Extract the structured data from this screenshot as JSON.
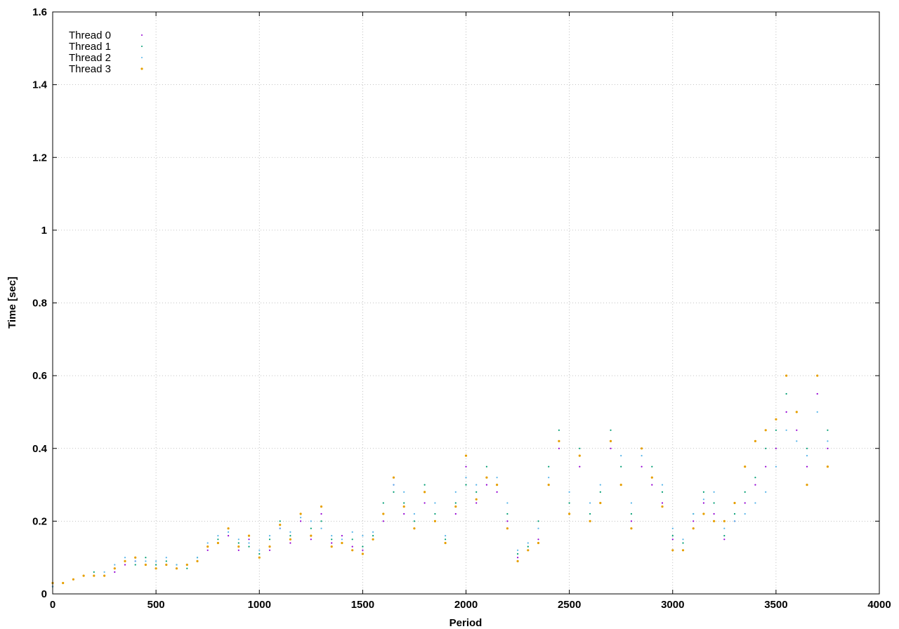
{
  "chart_data": {
    "type": "scatter",
    "title": "",
    "xlabel": "Period",
    "ylabel": "Time [sec]",
    "xlim": [
      0,
      4000
    ],
    "ylim": [
      0,
      1.6
    ],
    "x_ticks": [
      0,
      500,
      1000,
      1500,
      2000,
      2500,
      3000,
      3500,
      4000
    ],
    "y_ticks": [
      0,
      0.2,
      0.4,
      0.6,
      0.8,
      1,
      1.2,
      1.4,
      1.6
    ],
    "x_tick_labels": [
      "0",
      "500",
      "1000",
      "1500",
      "2000",
      "2500",
      "3000",
      "3500",
      "4000"
    ],
    "y_tick_labels": [
      "0",
      "0.2",
      "0.4",
      "0.6",
      "0.8",
      "1",
      "1.2",
      "1.4",
      "1.6"
    ],
    "grid": true,
    "legend_position": "top-left",
    "series": [
      {
        "name": "Thread 0",
        "color": "#9400d3",
        "marker": "dot",
        "points": [
          [
            0,
            0.02
          ],
          [
            50,
            0.03
          ],
          [
            100,
            0.04
          ],
          [
            150,
            0.05
          ],
          [
            200,
            0.05
          ],
          [
            250,
            0.05
          ],
          [
            300,
            0.06
          ],
          [
            350,
            0.08
          ],
          [
            400,
            0.09
          ],
          [
            450,
            0.08
          ],
          [
            500,
            0.07
          ],
          [
            550,
            0.08
          ],
          [
            600,
            0.07
          ],
          [
            650,
            0.08
          ],
          [
            700,
            0.09
          ],
          [
            750,
            0.12
          ],
          [
            800,
            0.14
          ],
          [
            850,
            0.16
          ],
          [
            900,
            0.12
          ],
          [
            950,
            0.15
          ],
          [
            1000,
            0.1
          ],
          [
            1050,
            0.12
          ],
          [
            1100,
            0.18
          ],
          [
            1150,
            0.14
          ],
          [
            1200,
            0.2
          ],
          [
            1250,
            0.15
          ],
          [
            1300,
            0.22
          ],
          [
            1350,
            0.14
          ],
          [
            1400,
            0.16
          ],
          [
            1450,
            0.13
          ],
          [
            1500,
            0.12
          ],
          [
            1550,
            0.15
          ],
          [
            1600,
            0.2
          ],
          [
            1650,
            0.3
          ],
          [
            1700,
            0.22
          ],
          [
            1750,
            0.18
          ],
          [
            1800,
            0.25
          ],
          [
            1850,
            0.2
          ],
          [
            1900,
            0.14
          ],
          [
            1950,
            0.22
          ],
          [
            2000,
            0.35
          ],
          [
            2050,
            0.25
          ],
          [
            2100,
            0.3
          ],
          [
            2150,
            0.28
          ],
          [
            2200,
            0.2
          ],
          [
            2250,
            0.1
          ],
          [
            2300,
            0.12
          ],
          [
            2350,
            0.15
          ],
          [
            2400,
            0.3
          ],
          [
            2450,
            0.4
          ],
          [
            2500,
            0.22
          ],
          [
            2550,
            0.35
          ],
          [
            2600,
            0.2
          ],
          [
            2650,
            0.25
          ],
          [
            2700,
            0.4
          ],
          [
            2750,
            0.3
          ],
          [
            2800,
            0.2
          ],
          [
            2850,
            0.35
          ],
          [
            2900,
            0.3
          ],
          [
            2950,
            0.25
          ],
          [
            3000,
            0.15
          ],
          [
            3050,
            0.12
          ],
          [
            3100,
            0.2
          ],
          [
            3150,
            0.25
          ],
          [
            3200,
            0.22
          ],
          [
            3250,
            0.15
          ],
          [
            3300,
            0.2
          ],
          [
            3350,
            0.25
          ],
          [
            3400,
            0.3
          ],
          [
            3450,
            0.35
          ],
          [
            3500,
            0.4
          ],
          [
            3550,
            0.5
          ],
          [
            3600,
            0.45
          ],
          [
            3650,
            0.35
          ],
          [
            3700,
            0.55
          ],
          [
            3750,
            0.4
          ]
        ]
      },
      {
        "name": "Thread 1",
        "color": "#009e73",
        "marker": "dot",
        "points": [
          [
            0,
            0.02
          ],
          [
            50,
            0.03
          ],
          [
            100,
            0.04
          ],
          [
            150,
            0.05
          ],
          [
            200,
            0.06
          ],
          [
            250,
            0.05
          ],
          [
            300,
            0.07
          ],
          [
            350,
            0.09
          ],
          [
            400,
            0.08
          ],
          [
            450,
            0.1
          ],
          [
            500,
            0.08
          ],
          [
            550,
            0.09
          ],
          [
            600,
            0.08
          ],
          [
            650,
            0.07
          ],
          [
            700,
            0.1
          ],
          [
            750,
            0.13
          ],
          [
            800,
            0.15
          ],
          [
            850,
            0.18
          ],
          [
            900,
            0.14
          ],
          [
            950,
            0.13
          ],
          [
            1000,
            0.11
          ],
          [
            1050,
            0.15
          ],
          [
            1100,
            0.2
          ],
          [
            1150,
            0.16
          ],
          [
            1200,
            0.22
          ],
          [
            1250,
            0.18
          ],
          [
            1300,
            0.2
          ],
          [
            1350,
            0.15
          ],
          [
            1400,
            0.14
          ],
          [
            1450,
            0.15
          ],
          [
            1500,
            0.13
          ],
          [
            1550,
            0.16
          ],
          [
            1600,
            0.25
          ],
          [
            1650,
            0.28
          ],
          [
            1700,
            0.25
          ],
          [
            1750,
            0.2
          ],
          [
            1800,
            0.3
          ],
          [
            1850,
            0.22
          ],
          [
            1900,
            0.15
          ],
          [
            1950,
            0.25
          ],
          [
            2000,
            0.3
          ],
          [
            2050,
            0.28
          ],
          [
            2100,
            0.35
          ],
          [
            2150,
            0.3
          ],
          [
            2200,
            0.22
          ],
          [
            2250,
            0.11
          ],
          [
            2300,
            0.13
          ],
          [
            2350,
            0.2
          ],
          [
            2400,
            0.35
          ],
          [
            2450,
            0.45
          ],
          [
            2500,
            0.25
          ],
          [
            2550,
            0.4
          ],
          [
            2600,
            0.22
          ],
          [
            2650,
            0.28
          ],
          [
            2700,
            0.45
          ],
          [
            2750,
            0.35
          ],
          [
            2800,
            0.22
          ],
          [
            2850,
            0.4
          ],
          [
            2900,
            0.35
          ],
          [
            2950,
            0.28
          ],
          [
            3000,
            0.16
          ],
          [
            3050,
            0.14
          ],
          [
            3100,
            0.22
          ],
          [
            3150,
            0.28
          ],
          [
            3200,
            0.25
          ],
          [
            3250,
            0.16
          ],
          [
            3300,
            0.22
          ],
          [
            3350,
            0.28
          ],
          [
            3400,
            0.32
          ],
          [
            3450,
            0.4
          ],
          [
            3500,
            0.45
          ],
          [
            3550,
            0.55
          ],
          [
            3600,
            0.5
          ],
          [
            3650,
            0.4
          ],
          [
            3700,
            0.6
          ],
          [
            3750,
            0.45
          ]
        ]
      },
      {
        "name": "Thread 2",
        "color": "#56b4e9",
        "marker": "dot",
        "points": [
          [
            0,
            0.02
          ],
          [
            50,
            0.03
          ],
          [
            100,
            0.04
          ],
          [
            150,
            0.05
          ],
          [
            200,
            0.05
          ],
          [
            250,
            0.06
          ],
          [
            300,
            0.08
          ],
          [
            350,
            0.1
          ],
          [
            400,
            0.09
          ],
          [
            450,
            0.09
          ],
          [
            500,
            0.09
          ],
          [
            550,
            0.1
          ],
          [
            600,
            0.08
          ],
          [
            650,
            0.08
          ],
          [
            700,
            0.1
          ],
          [
            750,
            0.14
          ],
          [
            800,
            0.16
          ],
          [
            850,
            0.17
          ],
          [
            900,
            0.15
          ],
          [
            950,
            0.14
          ],
          [
            1000,
            0.12
          ],
          [
            1050,
            0.16
          ],
          [
            1100,
            0.18
          ],
          [
            1150,
            0.17
          ],
          [
            1200,
            0.21
          ],
          [
            1250,
            0.2
          ],
          [
            1300,
            0.18
          ],
          [
            1350,
            0.16
          ],
          [
            1400,
            0.15
          ],
          [
            1450,
            0.17
          ],
          [
            1500,
            0.16
          ],
          [
            1550,
            0.17
          ],
          [
            1600,
            0.22
          ],
          [
            1650,
            0.3
          ],
          [
            1700,
            0.28
          ],
          [
            1750,
            0.22
          ],
          [
            1800,
            0.28
          ],
          [
            1850,
            0.25
          ],
          [
            1900,
            0.16
          ],
          [
            1950,
            0.28
          ],
          [
            2000,
            0.32
          ],
          [
            2050,
            0.3
          ],
          [
            2100,
            0.32
          ],
          [
            2150,
            0.32
          ],
          [
            2200,
            0.25
          ],
          [
            2250,
            0.12
          ],
          [
            2300,
            0.14
          ],
          [
            2350,
            0.18
          ],
          [
            2400,
            0.32
          ],
          [
            2450,
            0.42
          ],
          [
            2500,
            0.28
          ],
          [
            2550,
            0.38
          ],
          [
            2600,
            0.25
          ],
          [
            2650,
            0.3
          ],
          [
            2700,
            0.42
          ],
          [
            2750,
            0.38
          ],
          [
            2800,
            0.25
          ],
          [
            2850,
            0.38
          ],
          [
            2900,
            0.32
          ],
          [
            2950,
            0.3
          ],
          [
            3000,
            0.18
          ],
          [
            3050,
            0.15
          ],
          [
            3100,
            0.22
          ],
          [
            3150,
            0.26
          ],
          [
            3200,
            0.28
          ],
          [
            3250,
            0.18
          ],
          [
            3300,
            0.2
          ],
          [
            3350,
            0.22
          ],
          [
            3400,
            0.25
          ],
          [
            3450,
            0.28
          ],
          [
            3500,
            0.35
          ],
          [
            3550,
            0.45
          ],
          [
            3600,
            0.42
          ],
          [
            3650,
            0.38
          ],
          [
            3700,
            0.5
          ],
          [
            3750,
            0.42
          ]
        ]
      },
      {
        "name": "Thread 3",
        "color": "#e69f00",
        "marker": "dot",
        "points": [
          [
            0,
            0.03
          ],
          [
            50,
            0.03
          ],
          [
            100,
            0.04
          ],
          [
            150,
            0.05
          ],
          [
            200,
            0.05
          ],
          [
            250,
            0.05
          ],
          [
            300,
            0.07
          ],
          [
            350,
            0.09
          ],
          [
            400,
            0.1
          ],
          [
            450,
            0.08
          ],
          [
            500,
            0.07
          ],
          [
            550,
            0.08
          ],
          [
            600,
            0.07
          ],
          [
            650,
            0.08
          ],
          [
            700,
            0.09
          ],
          [
            750,
            0.13
          ],
          [
            800,
            0.14
          ],
          [
            850,
            0.18
          ],
          [
            900,
            0.13
          ],
          [
            950,
            0.16
          ],
          [
            1000,
            0.1
          ],
          [
            1050,
            0.13
          ],
          [
            1100,
            0.19
          ],
          [
            1150,
            0.15
          ],
          [
            1200,
            0.22
          ],
          [
            1250,
            0.16
          ],
          [
            1300,
            0.24
          ],
          [
            1350,
            0.13
          ],
          [
            1400,
            0.14
          ],
          [
            1450,
            0.12
          ],
          [
            1500,
            0.11
          ],
          [
            1550,
            0.15
          ],
          [
            1600,
            0.22
          ],
          [
            1650,
            0.32
          ],
          [
            1700,
            0.24
          ],
          [
            1750,
            0.18
          ],
          [
            1800,
            0.28
          ],
          [
            1850,
            0.2
          ],
          [
            1900,
            0.14
          ],
          [
            1950,
            0.24
          ],
          [
            2000,
            0.38
          ],
          [
            2050,
            0.26
          ],
          [
            2100,
            0.32
          ],
          [
            2150,
            0.3
          ],
          [
            2200,
            0.18
          ],
          [
            2250,
            0.09
          ],
          [
            2300,
            0.12
          ],
          [
            2350,
            0.14
          ],
          [
            2400,
            0.3
          ],
          [
            2450,
            0.42
          ],
          [
            2500,
            0.22
          ],
          [
            2550,
            0.38
          ],
          [
            2600,
            0.2
          ],
          [
            2650,
            0.25
          ],
          [
            2700,
            0.42
          ],
          [
            2750,
            0.3
          ],
          [
            2800,
            0.18
          ],
          [
            2850,
            0.4
          ],
          [
            2900,
            0.32
          ],
          [
            2950,
            0.24
          ],
          [
            3000,
            0.12
          ],
          [
            3050,
            0.12
          ],
          [
            3100,
            0.18
          ],
          [
            3150,
            0.22
          ],
          [
            3200,
            0.2
          ],
          [
            3250,
            0.2
          ],
          [
            3300,
            0.25
          ],
          [
            3350,
            0.35
          ],
          [
            3400,
            0.42
          ],
          [
            3450,
            0.45
          ],
          [
            3500,
            0.48
          ],
          [
            3550,
            0.6
          ],
          [
            3600,
            0.5
          ],
          [
            3650,
            0.3
          ],
          [
            3700,
            0.6
          ],
          [
            3750,
            0.35
          ]
        ]
      }
    ]
  }
}
